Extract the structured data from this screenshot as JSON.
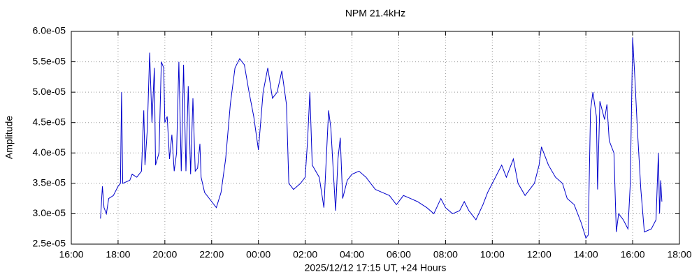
{
  "chart_data": {
    "type": "line",
    "title": "NPM 21.4kHz",
    "x_label": "2025/12/12 17:15 UT, +24 Hours",
    "y_label": "Amplitude",
    "color": "#0000cc",
    "grid": true,
    "xlim": [
      16,
      42
    ],
    "xticks": [
      {
        "value": 16,
        "label": "16:00"
      },
      {
        "value": 18,
        "label": "18:00"
      },
      {
        "value": 20,
        "label": "20:00"
      },
      {
        "value": 22,
        "label": "22:00"
      },
      {
        "value": 24,
        "label": "00:00"
      },
      {
        "value": 26,
        "label": "02:00"
      },
      {
        "value": 28,
        "label": "04:00"
      },
      {
        "value": 30,
        "label": "06:00"
      },
      {
        "value": 32,
        "label": "08:00"
      },
      {
        "value": 34,
        "label": "10:00"
      },
      {
        "value": 36,
        "label": "12:00"
      },
      {
        "value": 38,
        "label": "14:00"
      },
      {
        "value": 40,
        "label": "16:00"
      },
      {
        "value": 42,
        "label": "18:00"
      }
    ],
    "ylim": [
      2.5e-05,
      6e-05
    ],
    "yticks": [
      {
        "value": 2.5e-05,
        "label": "2.5e-05"
      },
      {
        "value": 3e-05,
        "label": "3.0e-05"
      },
      {
        "value": 3.5e-05,
        "label": "3.5e-05"
      },
      {
        "value": 4e-05,
        "label": "4.0e-05"
      },
      {
        "value": 4.5e-05,
        "label": "4.5e-05"
      },
      {
        "value": 5e-05,
        "label": "5.0e-05"
      },
      {
        "value": 5.5e-05,
        "label": "5.5e-05"
      },
      {
        "value": 6e-05,
        "label": "6.0e-05"
      }
    ],
    "x": [
      17.25,
      17.33,
      17.4,
      17.5,
      17.6,
      17.8,
      18.0,
      18.1,
      18.15,
      18.2,
      18.5,
      18.6,
      18.8,
      19.0,
      19.1,
      19.15,
      19.25,
      19.35,
      19.45,
      19.55,
      19.6,
      19.75,
      19.85,
      19.95,
      20.0,
      20.1,
      20.2,
      20.3,
      20.4,
      20.5,
      20.6,
      20.7,
      20.8,
      20.9,
      21.0,
      21.1,
      21.2,
      21.3,
      21.4,
      21.5,
      21.55,
      21.7,
      22.0,
      22.2,
      22.4,
      22.6,
      22.8,
      23.0,
      23.2,
      23.4,
      23.6,
      23.8,
      24.0,
      24.2,
      24.4,
      24.6,
      24.8,
      25.0,
      25.2,
      25.3,
      25.5,
      25.8,
      26.0,
      26.1,
      26.2,
      26.3,
      26.6,
      26.8,
      27.0,
      27.1,
      27.2,
      27.3,
      27.4,
      27.5,
      27.6,
      27.8,
      28.0,
      28.3,
      28.6,
      28.8,
      29.0,
      29.3,
      29.6,
      29.9,
      30.2,
      30.5,
      30.8,
      31.2,
      31.5,
      31.8,
      32.0,
      32.3,
      32.6,
      32.8,
      33.0,
      33.3,
      33.6,
      33.8,
      34.0,
      34.4,
      34.6,
      34.9,
      35.1,
      35.4,
      35.6,
      35.8,
      36.0,
      36.1,
      36.4,
      36.7,
      37.0,
      37.2,
      37.5,
      37.8,
      38.0,
      38.1,
      38.2,
      38.3,
      38.45,
      38.5,
      38.6,
      38.8,
      38.9,
      39.0,
      39.2,
      39.3,
      39.4,
      39.6,
      39.8,
      39.9,
      40.0,
      40.1,
      40.2,
      40.35,
      40.5,
      40.8,
      41.0,
      41.1,
      41.15,
      41.2,
      41.25
    ],
    "values": [
      2.92e-05,
      3.45e-05,
      3.1e-05,
      3e-05,
      3.25e-05,
      3.3e-05,
      3.45e-05,
      3.5e-05,
      5e-05,
      3.5e-05,
      3.55e-05,
      3.65e-05,
      3.6e-05,
      3.7e-05,
      4.7e-05,
      3.8e-05,
      4.4e-05,
      5.65e-05,
      4.5e-05,
      5.4e-05,
      3.8e-05,
      4e-05,
      5.5e-05,
      5.4e-05,
      4.5e-05,
      4.6e-05,
      3.9e-05,
      4.3e-05,
      3.7e-05,
      4e-05,
      5.5e-05,
      3.7e-05,
      5.45e-05,
      3.7e-05,
      5.1e-05,
      3.65e-05,
      4.9e-05,
      3.7e-05,
      3.75e-05,
      4.15e-05,
      3.6e-05,
      3.35e-05,
      3.2e-05,
      3.1e-05,
      3.35e-05,
      3.9e-05,
      4.8e-05,
      5.4e-05,
      5.55e-05,
      5.45e-05,
      5e-05,
      4.6e-05,
      4.05e-05,
      5e-05,
      5.4e-05,
      4.9e-05,
      5e-05,
      5.35e-05,
      4.8e-05,
      3.5e-05,
      3.4e-05,
      3.5e-05,
      3.6e-05,
      4.2e-05,
      5e-05,
      3.8e-05,
      3.6e-05,
      3.1e-05,
      4.7e-05,
      4.4e-05,
      3.7e-05,
      3.05e-05,
      3.9e-05,
      4.25e-05,
      3.25e-05,
      3.55e-05,
      3.65e-05,
      3.7e-05,
      3.6e-05,
      3.5e-05,
      3.4e-05,
      3.35e-05,
      3.3e-05,
      3.15e-05,
      3.3e-05,
      3.25e-05,
      3.2e-05,
      3.1e-05,
      3e-05,
      3.25e-05,
      3.1e-05,
      3e-05,
      3.05e-05,
      3.2e-05,
      3.05e-05,
      2.9e-05,
      3.15e-05,
      3.35e-05,
      3.5e-05,
      3.8e-05,
      3.6e-05,
      3.9e-05,
      3.5e-05,
      3.3e-05,
      3.4e-05,
      3.5e-05,
      3.8e-05,
      4.1e-05,
      3.8e-05,
      3.6e-05,
      3.5e-05,
      3.25e-05,
      3.15e-05,
      2.85e-05,
      2.6e-05,
      2.65e-05,
      4.7e-05,
      5e-05,
      4.6e-05,
      3.4e-05,
      4.85e-05,
      4.55e-05,
      4.8e-05,
      4.2e-05,
      4e-05,
      2.7e-05,
      3e-05,
      2.9e-05,
      2.75e-05,
      3.5e-05,
      5.9e-05,
      5.2e-05,
      4.4e-05,
      3.4e-05,
      2.7e-05,
      2.75e-05,
      2.9e-05,
      4e-05,
      3e-05,
      3.55e-05,
      3.2e-05
    ]
  }
}
